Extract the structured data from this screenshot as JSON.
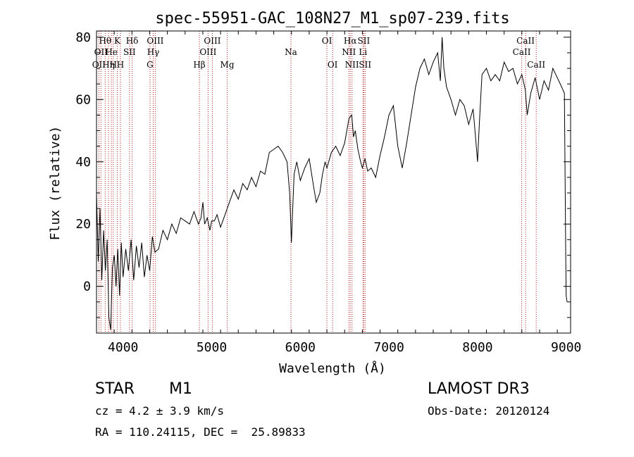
{
  "chart_data": {
    "type": "line",
    "title": "spec-55951-GAC_108N27_M1_sp07-239.fits",
    "xlabel": "Wavelength (Å)",
    "ylabel": "Flux (relative)",
    "xlim": [
      3700,
      9050
    ],
    "ylim": [
      -15,
      82
    ],
    "xticks": [
      4000,
      5000,
      6000,
      7000,
      8000,
      9000
    ],
    "yticks": [
      0,
      20,
      40,
      60,
      80
    ],
    "series": [
      {
        "name": "flux",
        "x": [
          3700,
          3720,
          3740,
          3760,
          3780,
          3800,
          3820,
          3840,
          3860,
          3880,
          3900,
          3920,
          3940,
          3960,
          3980,
          4000,
          4030,
          4060,
          4090,
          4120,
          4150,
          4180,
          4210,
          4240,
          4270,
          4300,
          4330,
          4360,
          4400,
          4450,
          4500,
          4550,
          4600,
          4650,
          4700,
          4750,
          4800,
          4850,
          4880,
          4900,
          4920,
          4950,
          4980,
          5000,
          5030,
          5060,
          5100,
          5150,
          5200,
          5250,
          5300,
          5350,
          5400,
          5450,
          5500,
          5550,
          5600,
          5650,
          5700,
          5750,
          5800,
          5850,
          5880,
          5900,
          5910,
          5930,
          5960,
          6000,
          6050,
          6100,
          6150,
          6180,
          6220,
          6250,
          6280,
          6300,
          6350,
          6400,
          6450,
          6500,
          6550,
          6580,
          6600,
          6620,
          6650,
          6680,
          6700,
          6730,
          6760,
          6800,
          6850,
          6900,
          6950,
          7000,
          7050,
          7100,
          7150,
          7200,
          7250,
          7300,
          7350,
          7400,
          7450,
          7500,
          7550,
          7580,
          7600,
          7620,
          7650,
          7700,
          7750,
          7800,
          7850,
          7900,
          7950,
          7980,
          8000,
          8020,
          8050,
          8100,
          8150,
          8200,
          8250,
          8300,
          8350,
          8400,
          8450,
          8500,
          8540,
          8560,
          8600,
          8650,
          8700,
          8750,
          8800,
          8850,
          8900,
          8950,
          8980,
          8995,
          9000,
          9010
        ],
        "values": [
          30,
          8,
          25,
          2,
          18,
          5,
          15,
          -10,
          -14,
          6,
          10,
          0,
          12,
          -3,
          14,
          3,
          12,
          5,
          15,
          2,
          13,
          6,
          14,
          3,
          10,
          5,
          16,
          11,
          12,
          18,
          15,
          20,
          17,
          22,
          21,
          20,
          24,
          20,
          22,
          27,
          20,
          22,
          18,
          21,
          21,
          23,
          19,
          23,
          27,
          31,
          28,
          33,
          31,
          35,
          32,
          37,
          36,
          43,
          44,
          45,
          43,
          40,
          30,
          14,
          22,
          36,
          40,
          34,
          38,
          41,
          32,
          27,
          30,
          36,
          40,
          38,
          43,
          45,
          42,
          46,
          54,
          55,
          48,
          50,
          44,
          40,
          38,
          41,
          37,
          38,
          35,
          42,
          48,
          55,
          58,
          45,
          38,
          46,
          55,
          64,
          70,
          73,
          68,
          72,
          75,
          66,
          80,
          70,
          64,
          60,
          55,
          60,
          58,
          52,
          57,
          47,
          40,
          52,
          68,
          70,
          66,
          68,
          66,
          72,
          69,
          70,
          65,
          68,
          63,
          55,
          62,
          67,
          60,
          66,
          63,
          70,
          67,
          64,
          62,
          10,
          -3,
          -5
        ]
      }
    ],
    "lines": [
      {
        "wl": 3727,
        "row": 2,
        "label": "OII"
      },
      {
        "wl": 3750,
        "row": 1,
        "label": "OII"
      },
      {
        "wl": 3798,
        "row": 0,
        "label": "Hθ"
      },
      {
        "wl": 3835,
        "row": 2,
        "label": "Hη"
      },
      {
        "wl": 3868,
        "row": 1,
        "label": "He"
      },
      {
        "wl": 3889,
        "row": 2,
        "label": "H"
      },
      {
        "wl": 3934,
        "row": 0,
        "label": "K"
      },
      {
        "wl": 3970,
        "row": 2,
        "label": "H"
      },
      {
        "wl": 4072,
        "row": 1,
        "label": "SII"
      },
      {
        "wl": 4102,
        "row": 0,
        "label": "Hδ"
      },
      {
        "wl": 4304,
        "row": 2,
        "label": "G"
      },
      {
        "wl": 4340,
        "row": 1,
        "label": "Hγ"
      },
      {
        "wl": 4363,
        "row": 0,
        "label": "OIII"
      },
      {
        "wl": 4861,
        "row": 2,
        "label": "Hβ"
      },
      {
        "wl": 4959,
        "row": 1,
        "label": "OIII"
      },
      {
        "wl": 5007,
        "row": 0,
        "label": "OIII"
      },
      {
        "wl": 5175,
        "row": 2,
        "label": "Mg"
      },
      {
        "wl": 5894,
        "row": 1,
        "label": "Na"
      },
      {
        "wl": 6300,
        "row": 0,
        "label": "OI"
      },
      {
        "wl": 6364,
        "row": 2,
        "label": "OI"
      },
      {
        "wl": 6548,
        "row": 1,
        "label": "NII"
      },
      {
        "wl": 6563,
        "row": 0,
        "label": "Hα"
      },
      {
        "wl": 6583,
        "row": 2,
        "label": "NII"
      },
      {
        "wl": 6707,
        "row": 1,
        "label": "Li"
      },
      {
        "wl": 6716,
        "row": 0,
        "label": "SII"
      },
      {
        "wl": 6731,
        "row": 2,
        "label": "SII"
      },
      {
        "wl": 8498,
        "row": 1,
        "label": "CaII"
      },
      {
        "wl": 8542,
        "row": 0,
        "label": "CaII"
      },
      {
        "wl": 8662,
        "row": 2,
        "label": "CaII"
      }
    ]
  },
  "info": {
    "object_class": "STAR",
    "subclass": "M1",
    "survey": "LAMOST DR3",
    "cz": "cz = 4.2 ± 3.9 km/s",
    "obs_date": "Obs-Date: 20120124",
    "coords": "RA = 110.24115, DEC =  25.89833"
  },
  "colors": {
    "line_marker": "#b22222",
    "spectrum": "#000000"
  }
}
